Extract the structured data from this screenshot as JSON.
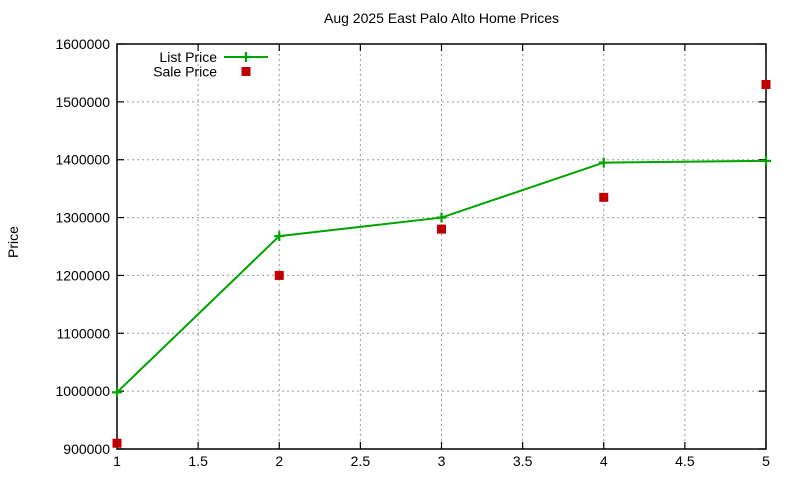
{
  "chart_data": {
    "type": "line",
    "title": "Aug 2025 East Palo Alto Home Prices",
    "xlabel": "",
    "ylabel": "Price",
    "x": [
      1,
      2,
      3,
      4,
      5
    ],
    "series": [
      {
        "name": "List Price",
        "style": "line-with-plus-markers",
        "color": "#00a400",
        "values": [
          998000,
          1268000,
          1300000,
          1395000,
          1398000
        ]
      },
      {
        "name": "Sale Price",
        "style": "filled-square-points",
        "color": "#c00000",
        "values": [
          910000,
          1200000,
          1280000,
          1335000,
          1530000
        ]
      }
    ],
    "xlim": [
      1,
      5
    ],
    "ylim": [
      900000,
      1600000
    ],
    "xticks": [
      1,
      1.5,
      2,
      2.5,
      3,
      3.5,
      4,
      4.5,
      5
    ],
    "yticks": [
      900000,
      1000000,
      1100000,
      1200000,
      1300000,
      1400000,
      1500000,
      1600000
    ],
    "grid": true,
    "legend_position": "top-left-inside",
    "colors": {
      "grid": "#9c9c9c",
      "border": "#000000",
      "background": "#ffffff",
      "text": "#000000"
    }
  }
}
